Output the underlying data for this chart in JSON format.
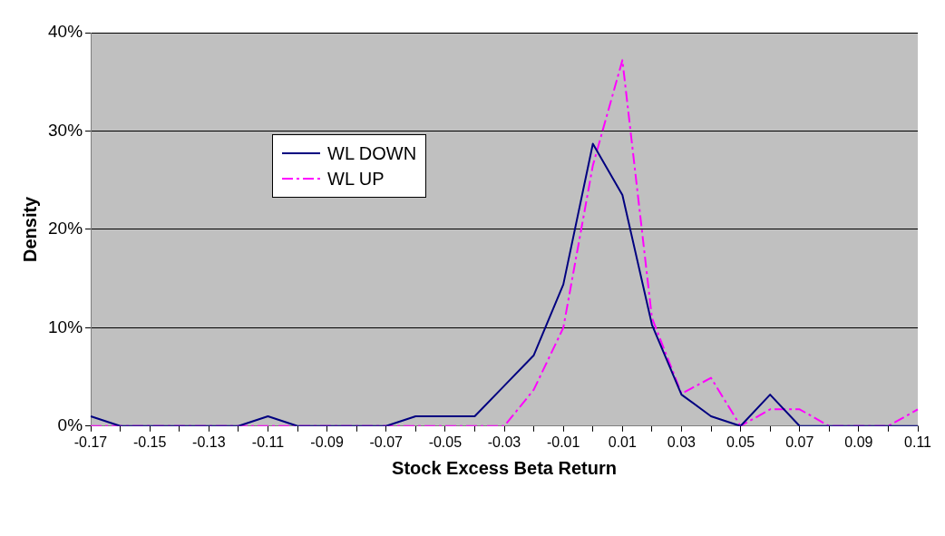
{
  "chart_data": {
    "type": "line",
    "xlabel": "Stock Excess Beta Return",
    "ylabel": "Density",
    "categories": [
      "-0.17",
      null,
      "-0.15",
      null,
      "-0.13",
      null,
      "-0.11",
      null,
      "-0.09",
      null,
      "-0.07",
      null,
      "-0.05",
      null,
      "-0.03",
      null,
      "-0.01",
      null,
      "0.01",
      null,
      "0.03",
      null,
      "0.05",
      null,
      "0.07",
      null,
      "0.09",
      null,
      "0.11"
    ],
    "series": [
      {
        "name": "WL DOWN",
        "color": "#000080",
        "line_style": "solid",
        "values": [
          1,
          0,
          0,
          0,
          0,
          0,
          1,
          0,
          0,
          0,
          0,
          1,
          1,
          1,
          4.1,
          7.2,
          14.4,
          28.7,
          23.5,
          10.3,
          3.2,
          1,
          0,
          3.2,
          0,
          0,
          0,
          0,
          0
        ]
      },
      {
        "name": "WL UP",
        "color": "#ff00ff",
        "line_style": "dashed",
        "values": [
          0,
          0,
          0,
          0,
          0,
          0,
          0,
          0,
          0,
          0,
          0,
          0,
          0,
          0,
          0,
          3.7,
          10,
          26.5,
          37.2,
          11,
          3.3,
          4.9,
          0,
          1.7,
          1.7,
          0,
          0,
          0,
          1.7
        ]
      }
    ],
    "ylim": [
      0,
      40
    ],
    "yticks": [
      {
        "value": 0,
        "label": "0%"
      },
      {
        "value": 10,
        "label": "10%"
      },
      {
        "value": 20,
        "label": "20%"
      },
      {
        "value": 30,
        "label": "30%"
      },
      {
        "value": 40,
        "label": "40%"
      }
    ],
    "grid": "y",
    "legend": "top left",
    "marker": "none"
  }
}
